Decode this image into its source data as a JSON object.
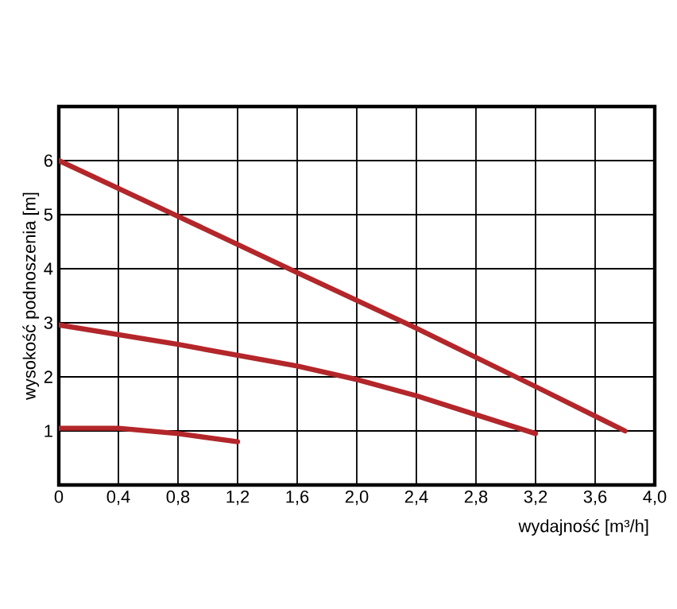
{
  "chart_data": {
    "type": "line",
    "xlabel": "wydajność [m³/h]",
    "ylabel": "wysokość podnoszenia [m]",
    "xlim": [
      0,
      4.0
    ],
    "ylim": [
      0,
      7
    ],
    "xticks": [
      0,
      {
        "value": 0.4,
        "label": "0,4"
      },
      {
        "value": 0.8,
        "label": "0,8"
      },
      {
        "value": 1.2,
        "label": "1,2"
      },
      {
        "value": 1.6,
        "label": "1,6"
      },
      {
        "value": 2.0,
        "label": "2,0"
      },
      {
        "value": 2.4,
        "label": "2,4"
      },
      {
        "value": 2.8,
        "label": "2,8"
      },
      {
        "value": 3.2,
        "label": "3,2"
      },
      {
        "value": 3.6,
        "label": "3,6"
      },
      {
        "value": 4.0,
        "label": "4,0"
      }
    ],
    "yticks": [
      1,
      2,
      3,
      4,
      5,
      6
    ],
    "grid": true,
    "marker": "none",
    "line_style": "solid",
    "series": [
      {
        "color": "#b3262a",
        "x": [
          0,
          0.8,
          1.6,
          2.4,
          3.2,
          3.8
        ],
        "values": [
          6,
          4.97,
          3.93,
          2.9,
          1.82,
          1.0
        ]
      },
      {
        "color": "#b3262a",
        "x": [
          0,
          0.8,
          1.6,
          2.0,
          2.4,
          2.8,
          3.2
        ],
        "values": [
          2.96,
          2.6,
          2.2,
          1.95,
          1.65,
          1.3,
          0.95
        ]
      },
      {
        "color": "#b3262a",
        "x": [
          0,
          0.4,
          0.8,
          1.2
        ],
        "values": [
          1.05,
          1.05,
          0.95,
          0.8
        ]
      }
    ]
  }
}
